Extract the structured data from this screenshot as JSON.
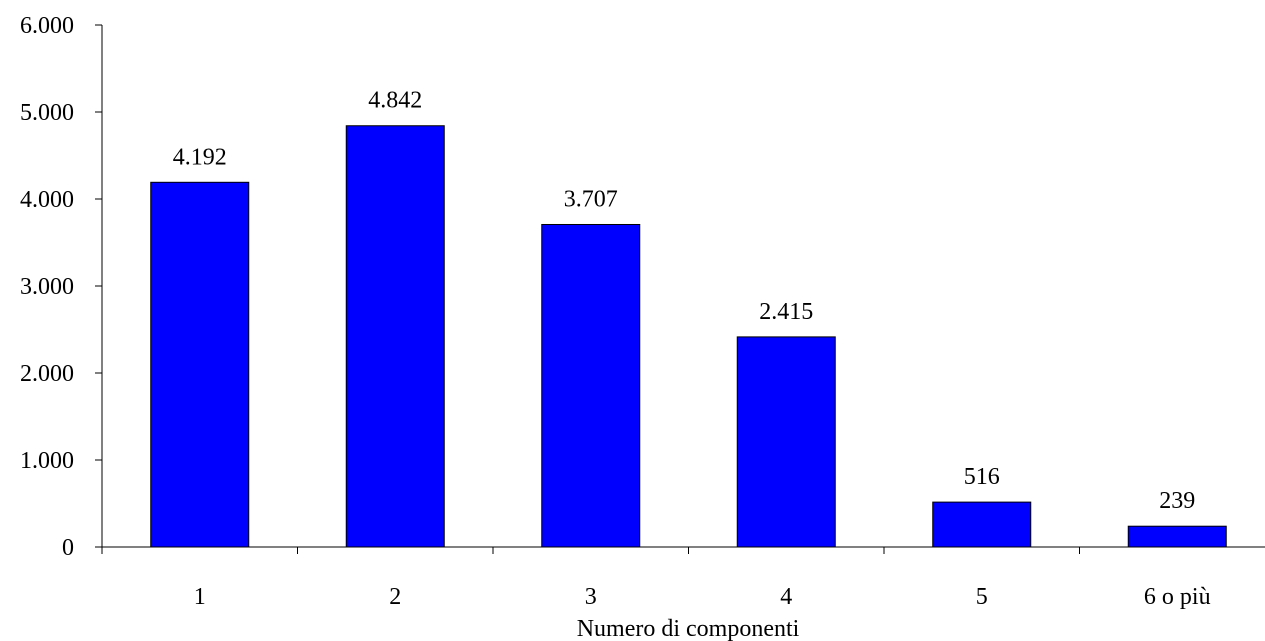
{
  "chart_data": {
    "type": "bar",
    "title": "",
    "xlabel": "Numero di componenti",
    "ylabel": "",
    "categories": [
      "1",
      "2",
      "3",
      "4",
      "5",
      "6 o più"
    ],
    "series": [
      {
        "values": [
          4192,
          4842,
          3707,
          2415,
          516,
          239
        ],
        "data_labels": [
          "4.192",
          "4.842",
          "3.707",
          "2.415",
          "516",
          "239"
        ]
      }
    ],
    "ylim": [
      0,
      6000
    ],
    "yticks": [
      0,
      1000,
      2000,
      3000,
      4000,
      5000,
      6000
    ],
    "ytick_labels": [
      "0",
      "1.000",
      "2.000",
      "3.000",
      "4.000",
      "5.000",
      "6.000"
    ],
    "grid": false,
    "legend": "none",
    "colors": {
      "bar_fill": "#0000FF",
      "bar_stroke": "#000000",
      "axis": "#000000"
    }
  }
}
